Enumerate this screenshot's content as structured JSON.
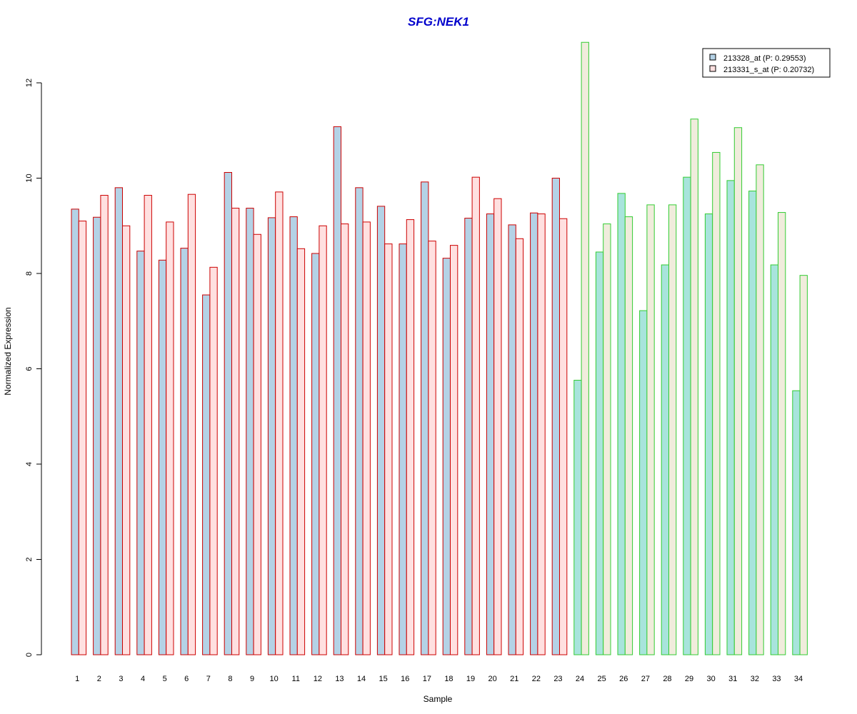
{
  "colors": {
    "title": "#0000cc",
    "group1_border": "#cc0000",
    "group2_border": "#33cc33",
    "series1_fill_group1": "#b4d2e6",
    "series2_fill_group1": "#ffe0e0",
    "series1_fill_group2": "#a8e4dc",
    "series2_fill_group2": "#f0ecdc",
    "legend_swatch1": "#b4d2e6",
    "legend_swatch2": "#ffe0e0"
  },
  "chart_data": {
    "type": "bar",
    "title": "SFG:NEK1",
    "xlabel": "Sample",
    "ylabel": "Normalized Expression",
    "ylim": [
      0,
      12.9
    ],
    "yticks": [
      0,
      2,
      4,
      6,
      8,
      10,
      12
    ],
    "categories": [
      "1",
      "2",
      "3",
      "4",
      "5",
      "6",
      "7",
      "8",
      "9",
      "10",
      "11",
      "12",
      "13",
      "14",
      "15",
      "16",
      "17",
      "18",
      "19",
      "20",
      "21",
      "22",
      "23",
      "24",
      "25",
      "26",
      "27",
      "28",
      "29",
      "30",
      "31",
      "32",
      "33",
      "34"
    ],
    "group_boundary_after": 23,
    "legend_position": "top-right",
    "grid": false,
    "series": [
      {
        "name": "213328_at (P: 0.29553)",
        "values": [
          9.35,
          9.18,
          9.8,
          8.47,
          8.28,
          8.53,
          7.55,
          10.12,
          9.37,
          9.17,
          9.19,
          8.42,
          11.08,
          9.8,
          9.41,
          8.62,
          9.92,
          8.32,
          9.16,
          9.25,
          9.02,
          9.27,
          10.0,
          5.76,
          8.45,
          9.68,
          7.22,
          8.18,
          10.02,
          9.25,
          9.95,
          9.73,
          8.18,
          5.54
        ]
      },
      {
        "name": "213331_s_at (P: 0.20732)",
        "values": [
          9.1,
          9.64,
          9.0,
          9.64,
          9.08,
          9.66,
          8.13,
          9.37,
          8.82,
          9.71,
          8.52,
          9.0,
          9.04,
          9.08,
          8.62,
          9.13,
          8.68,
          8.59,
          10.02,
          9.57,
          8.73,
          9.25,
          9.15,
          12.85,
          9.04,
          9.19,
          9.44,
          9.44,
          11.24,
          10.54,
          11.06,
          10.28,
          9.28,
          7.96
        ]
      }
    ]
  }
}
